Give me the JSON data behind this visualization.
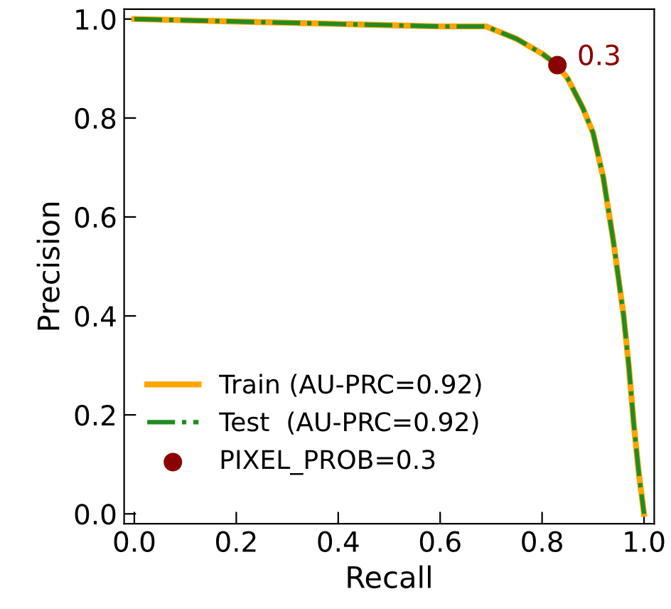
{
  "chart_data": {
    "type": "line",
    "xlabel": "Recall",
    "ylabel": "Precision",
    "xlim": [
      -0.02,
      1.02
    ],
    "ylim": [
      -0.02,
      1.02
    ],
    "xticks": [
      {
        "value": 0,
        "label": "0.0"
      },
      0.2,
      0.4,
      0.6,
      0.8,
      {
        "value": 1,
        "label": "1.0"
      }
    ],
    "yticks": [
      {
        "value": 0,
        "label": "0.0"
      },
      0.2,
      0.4,
      0.6,
      0.8,
      {
        "value": 1,
        "label": "1.0"
      }
    ],
    "grid": false,
    "legend": "bottom left",
    "marker": "none",
    "series": [
      {
        "name": "Train (AU-PRC=0.92)",
        "color": "#ffa500",
        "line_style": "solid",
        "x": [
          0,
          0.2,
          0.4,
          0.6,
          0.69,
          0.75,
          0.8,
          0.83,
          0.85,
          0.88,
          0.9,
          0.92,
          0.94,
          0.96,
          0.97,
          0.98,
          0.99,
          1.0
        ],
        "values": [
          1.0,
          0.995,
          0.99,
          0.985,
          0.985,
          0.96,
          0.93,
          0.907,
          0.88,
          0.82,
          0.77,
          0.68,
          0.55,
          0.4,
          0.3,
          0.18,
          0.08,
          0.0
        ]
      },
      {
        "name": "Test  (AU-PRC=0.92)",
        "color": "#228b22",
        "line_style": "dashdot",
        "x": [
          0,
          0.2,
          0.4,
          0.6,
          0.69,
          0.75,
          0.8,
          0.83,
          0.85,
          0.88,
          0.9,
          0.92,
          0.94,
          0.96,
          0.97,
          0.98,
          0.99,
          1.0
        ],
        "values": [
          1.0,
          0.995,
          0.99,
          0.985,
          0.985,
          0.96,
          0.93,
          0.907,
          0.88,
          0.82,
          0.77,
          0.68,
          0.55,
          0.4,
          0.3,
          0.18,
          0.08,
          0.0
        ]
      },
      {
        "name": "PIXEL_PROB=0.3",
        "type": "scatter",
        "marker": "circle",
        "color": "#8b0000",
        "x": [
          0.83
        ],
        "values": [
          0.907
        ]
      }
    ],
    "annotations": [
      {
        "text": "0.3",
        "x": 0.83,
        "y": 0.907
      }
    ]
  }
}
